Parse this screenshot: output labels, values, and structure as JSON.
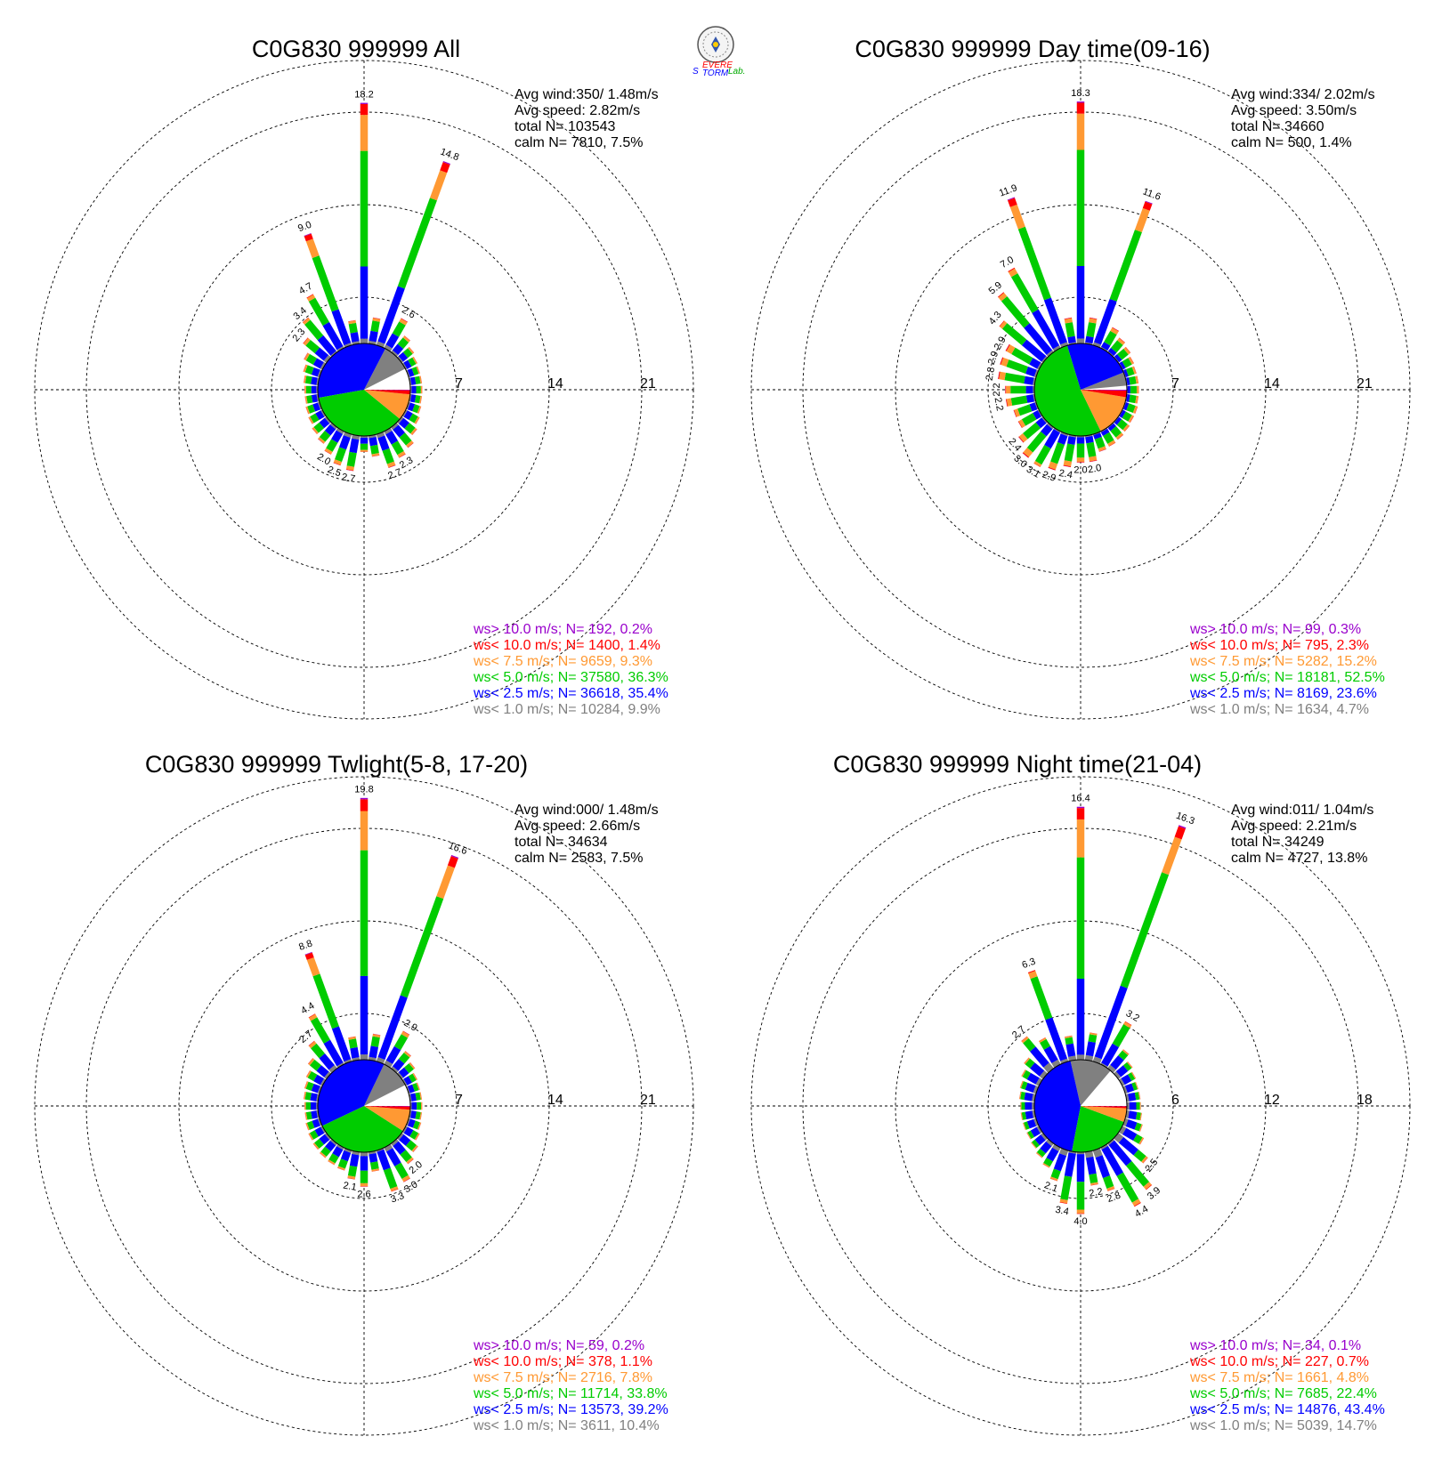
{
  "logo": {
    "text_s": "S",
    "text_evere": "EVERE",
    "text_torm": "TORM",
    "text_lab": "Lab.",
    "colors": {
      "s": "#0000ff",
      "evere": "#ff0000",
      "torm": "#0000ff",
      "lab": "#00aa00"
    }
  },
  "colors": {
    "ws_gt10": "#9900cc",
    "ws_lt10": "#ff0000",
    "ws_lt75": "#ff9933",
    "ws_lt50": "#00cc00",
    "ws_lt25": "#0000ff",
    "ws_lt10ms": "#808080",
    "calm": "#ffffff"
  },
  "chart_data": [
    {
      "type": "wind-rose",
      "title": "C0G830 999999 All",
      "stats": [
        "Avg wind:350/ 1.48m/s",
        "Avg speed: 2.82m/s",
        "total N=      103543",
        "calm N=   7810,   7.5%"
      ],
      "rings": [
        "7",
        "14",
        "21"
      ],
      "rmax": 21,
      "pie": [
        7.5,
        9.9,
        35.4,
        36.3,
        9.3,
        1.4,
        0.2
      ],
      "legend": [
        "ws> 10.0 m/s; N=   192,  0.2%",
        "ws< 10.0 m/s; N=  1400,  1.4%",
        "ws<  7.5 m/s; N=  9659,  9.3%",
        "ws<  5.0 m/s; N= 37580, 36.3%",
        "ws<  2.5 m/s; N= 36618, 35.4%",
        "ws<  1.0 m/s; N= 10284,  9.9%"
      ],
      "directions": [
        {
          "deg": 0,
          "total": 18.2,
          "label": "18.2"
        },
        {
          "deg": 10,
          "total": 2.0
        },
        {
          "deg": 20,
          "total": 14.8,
          "label": "14.8"
        },
        {
          "deg": 30,
          "total": 2.6,
          "label": "2.6"
        },
        {
          "deg": 40,
          "total": 1.6
        },
        {
          "deg": 50,
          "total": 1.2
        },
        {
          "deg": 60,
          "total": 1.0
        },
        {
          "deg": 70,
          "total": 0.9
        },
        {
          "deg": 80,
          "total": 0.9
        },
        {
          "deg": 90,
          "total": 0.9
        },
        {
          "deg": 100,
          "total": 0.9
        },
        {
          "deg": 110,
          "total": 1.0
        },
        {
          "deg": 120,
          "total": 1.2
        },
        {
          "deg": 130,
          "total": 1.5
        },
        {
          "deg": 140,
          "total": 2.0
        },
        {
          "deg": 150,
          "total": 2.3,
          "label": "2.3"
        },
        {
          "deg": 160,
          "total": 2.7,
          "label": "2.7"
        },
        {
          "deg": 170,
          "total": 1.6
        },
        {
          "deg": 180,
          "total": 1.2
        },
        {
          "deg": 190,
          "total": 2.7,
          "label": "2.7"
        },
        {
          "deg": 200,
          "total": 2.5,
          "label": "2.5"
        },
        {
          "deg": 210,
          "total": 2.0,
          "label": "2.0"
        },
        {
          "deg": 220,
          "total": 1.6
        },
        {
          "deg": 230,
          "total": 1.4
        },
        {
          "deg": 240,
          "total": 1.2
        },
        {
          "deg": 250,
          "total": 1.1
        },
        {
          "deg": 260,
          "total": 1.0
        },
        {
          "deg": 270,
          "total": 1.0
        },
        {
          "deg": 280,
          "total": 1.1
        },
        {
          "deg": 290,
          "total": 1.3
        },
        {
          "deg": 300,
          "total": 1.6
        },
        {
          "deg": 310,
          "total": 2.3,
          "label": "2.3"
        },
        {
          "deg": 320,
          "total": 3.4,
          "label": "3.4"
        },
        {
          "deg": 330,
          "total": 4.7,
          "label": "4.7"
        },
        {
          "deg": 340,
          "total": 9.0,
          "label": "9.0"
        },
        {
          "deg": 350,
          "total": 1.8
        }
      ]
    },
    {
      "type": "wind-rose",
      "title": "C0G830 999999 Day time(09-16)",
      "stats": [
        "Avg wind:334/ 2.02m/s",
        "Avg speed: 3.50m/s",
        "total N=      34660",
        "calm N=   500,   1.4%"
      ],
      "rings": [
        "7",
        "14",
        "21"
      ],
      "rmax": 21,
      "pie": [
        1.4,
        4.7,
        23.6,
        52.5,
        15.2,
        2.3,
        0.3
      ],
      "legend": [
        "ws> 10.0 m/s; N=    99,  0.3%",
        "ws< 10.0 m/s; N=   795,  2.3%",
        "ws<  7.5 m/s; N=  5282, 15.2%",
        "ws<  5.0 m/s; N= 18181, 52.5%",
        "ws<  2.5 m/s; N=  8169, 23.6%",
        "ws<  1.0 m/s; N=  1634,  4.7%"
      ],
      "directions": [
        {
          "deg": 0,
          "total": 18.3,
          "label": "18.3"
        },
        {
          "deg": 10,
          "total": 2.0
        },
        {
          "deg": 20,
          "total": 11.6,
          "label": "11.6"
        },
        {
          "deg": 30,
          "total": 1.8
        },
        {
          "deg": 40,
          "total": 1.4
        },
        {
          "deg": 50,
          "total": 1.2
        },
        {
          "deg": 60,
          "total": 1.0
        },
        {
          "deg": 70,
          "total": 0.9
        },
        {
          "deg": 80,
          "total": 0.9
        },
        {
          "deg": 90,
          "total": 0.9
        },
        {
          "deg": 100,
          "total": 0.9
        },
        {
          "deg": 110,
          "total": 1.0
        },
        {
          "deg": 120,
          "total": 1.0
        },
        {
          "deg": 130,
          "total": 1.1
        },
        {
          "deg": 140,
          "total": 1.2
        },
        {
          "deg": 150,
          "total": 1.3
        },
        {
          "deg": 160,
          "total": 1.4
        },
        {
          "deg": 170,
          "total": 2.0,
          "label": "2.0"
        },
        {
          "deg": 180,
          "total": 2.0,
          "label": "2.0"
        },
        {
          "deg": 190,
          "total": 2.4,
          "label": "2.4"
        },
        {
          "deg": 200,
          "total": 2.9,
          "label": "2.9"
        },
        {
          "deg": 210,
          "total": 3.1,
          "label": "3.1"
        },
        {
          "deg": 220,
          "total": 3.0,
          "label": "3.0"
        },
        {
          "deg": 230,
          "total": 2.4,
          "label": "2.4"
        },
        {
          "deg": 240,
          "total": 1.8
        },
        {
          "deg": 250,
          "total": 1.8
        },
        {
          "deg": 260,
          "total": 2.2,
          "label": "2.2"
        },
        {
          "deg": 270,
          "total": 2.2,
          "label": "2.2"
        },
        {
          "deg": 280,
          "total": 2.8,
          "label": "2.8"
        },
        {
          "deg": 290,
          "total": 2.9,
          "label": "2.9"
        },
        {
          "deg": 300,
          "total": 2.9,
          "label": "2.9"
        },
        {
          "deg": 310,
          "total": 4.3,
          "label": "4.3"
        },
        {
          "deg": 320,
          "total": 5.9,
          "label": "5.9"
        },
        {
          "deg": 330,
          "total": 7.0,
          "label": "7.0"
        },
        {
          "deg": 340,
          "total": 11.9,
          "label": "11.9"
        },
        {
          "deg": 350,
          "total": 2.0
        }
      ]
    },
    {
      "type": "wind-rose",
      "title": "C0G830 999999 Twlight(5-8, 17-20)",
      "stats": [
        "Avg wind:000/ 1.48m/s",
        "Avg speed: 2.66m/s",
        "total N=      34634",
        "calm N=   2583,   7.5%"
      ],
      "rings": [
        "7",
        "14",
        "21"
      ],
      "rmax": 21,
      "pie": [
        7.5,
        10.4,
        39.2,
        33.8,
        7.8,
        1.1,
        0.2
      ],
      "legend": [
        "ws> 10.0 m/s; N=    59,  0.2%",
        "ws< 10.0 m/s; N=   378,  1.1%",
        "ws<  7.5 m/s; N=  2716,  7.8%",
        "ws<  5.0 m/s; N= 11714, 33.8%",
        "ws<  2.5 m/s; N= 13573, 39.2%",
        "ws<  1.0 m/s; N=  3611, 10.4%"
      ],
      "directions": [
        {
          "deg": 0,
          "total": 19.8,
          "label": "19.8"
        },
        {
          "deg": 10,
          "total": 2.0
        },
        {
          "deg": 20,
          "total": 16.6,
          "label": "16.6"
        },
        {
          "deg": 30,
          "total": 2.9,
          "label": "2.9"
        },
        {
          "deg": 40,
          "total": 1.7
        },
        {
          "deg": 50,
          "total": 1.3
        },
        {
          "deg": 60,
          "total": 1.0
        },
        {
          "deg": 70,
          "total": 0.9
        },
        {
          "deg": 80,
          "total": 0.9
        },
        {
          "deg": 90,
          "total": 0.9
        },
        {
          "deg": 100,
          "total": 0.9
        },
        {
          "deg": 110,
          "total": 1.0
        },
        {
          "deg": 120,
          "total": 1.2
        },
        {
          "deg": 130,
          "total": 1.6
        },
        {
          "deg": 140,
          "total": 2.0,
          "label": "2.0"
        },
        {
          "deg": 150,
          "total": 3.0,
          "label": "3.0"
        },
        {
          "deg": 160,
          "total": 3.3,
          "label": "3.3"
        },
        {
          "deg": 170,
          "total": 1.5
        },
        {
          "deg": 180,
          "total": 2.6,
          "label": "2.6"
        },
        {
          "deg": 190,
          "total": 2.1,
          "label": "2.1"
        },
        {
          "deg": 200,
          "total": 1.6
        },
        {
          "deg": 210,
          "total": 1.5
        },
        {
          "deg": 220,
          "total": 1.4
        },
        {
          "deg": 230,
          "total": 1.3
        },
        {
          "deg": 240,
          "total": 1.2
        },
        {
          "deg": 250,
          "total": 1.1
        },
        {
          "deg": 260,
          "total": 1.0
        },
        {
          "deg": 270,
          "total": 1.0
        },
        {
          "deg": 280,
          "total": 1.1
        },
        {
          "deg": 290,
          "total": 1.2
        },
        {
          "deg": 300,
          "total": 1.4
        },
        {
          "deg": 310,
          "total": 1.8
        },
        {
          "deg": 320,
          "total": 2.7,
          "label": "2.7"
        },
        {
          "deg": 330,
          "total": 4.4,
          "label": "4.4"
        },
        {
          "deg": 340,
          "total": 8.8,
          "label": "8.8"
        },
        {
          "deg": 350,
          "total": 1.8
        }
      ]
    },
    {
      "type": "wind-rose",
      "title": "C0G830 999999 Night time(21-04)",
      "stats": [
        "Avg wind:011/ 1.04m/s",
        "Avg speed: 2.21m/s",
        "total N=      34249",
        "calm N=   4727,   13.8%"
      ],
      "rings": [
        "6",
        "12",
        "18"
      ],
      "rmax": 18,
      "pie": [
        13.8,
        14.7,
        43.4,
        22.4,
        4.8,
        0.7,
        0.1
      ],
      "legend": [
        "ws> 10.0 m/s; N=    34,  0.1%",
        "ws< 10.0 m/s; N=   227,  0.7%",
        "ws<  7.5 m/s; N=  1661,  4.8%",
        "ws<  5.0 m/s; N=  7685, 22.4%",
        "ws<  2.5 m/s; N= 14876, 43.4%",
        "ws<  1.0 m/s; N=  5039, 14.7%"
      ],
      "directions": [
        {
          "deg": 0,
          "total": 16.4,
          "label": "16.4"
        },
        {
          "deg": 10,
          "total": 1.8
        },
        {
          "deg": 20,
          "total": 16.3,
          "label": "16.3"
        },
        {
          "deg": 30,
          "total": 3.2,
          "label": "3.2"
        },
        {
          "deg": 40,
          "total": 1.6
        },
        {
          "deg": 50,
          "total": 1.2
        },
        {
          "deg": 60,
          "total": 1.0
        },
        {
          "deg": 70,
          "total": 0.9
        },
        {
          "deg": 80,
          "total": 0.9
        },
        {
          "deg": 90,
          "total": 0.9
        },
        {
          "deg": 100,
          "total": 1.0
        },
        {
          "deg": 110,
          "total": 1.2
        },
        {
          "deg": 120,
          "total": 1.6
        },
        {
          "deg": 130,
          "total": 2.5,
          "label": "2.5"
        },
        {
          "deg": 140,
          "total": 3.9,
          "label": "3.9"
        },
        {
          "deg": 150,
          "total": 4.4,
          "label": "4.4"
        },
        {
          "deg": 160,
          "total": 2.8,
          "label": "2.8"
        },
        {
          "deg": 170,
          "total": 2.2,
          "label": "2.2"
        },
        {
          "deg": 180,
          "total": 4.0,
          "label": "4.0"
        },
        {
          "deg": 190,
          "total": 3.4,
          "label": "3.4"
        },
        {
          "deg": 200,
          "total": 2.1,
          "label": "2.1"
        },
        {
          "deg": 210,
          "total": 1.5
        },
        {
          "deg": 220,
          "total": 1.2
        },
        {
          "deg": 230,
          "total": 1.0
        },
        {
          "deg": 240,
          "total": 0.9
        },
        {
          "deg": 250,
          "total": 0.9
        },
        {
          "deg": 260,
          "total": 0.9
        },
        {
          "deg": 270,
          "total": 0.9
        },
        {
          "deg": 280,
          "total": 1.0
        },
        {
          "deg": 290,
          "total": 1.1
        },
        {
          "deg": 300,
          "total": 1.3
        },
        {
          "deg": 310,
          "total": 1.6
        },
        {
          "deg": 320,
          "total": 2.7,
          "label": "2.7"
        },
        {
          "deg": 330,
          "total": 2.0
        },
        {
          "deg": 340,
          "total": 6.3,
          "label": "6.3"
        },
        {
          "deg": 350,
          "total": 1.6
        }
      ]
    }
  ]
}
